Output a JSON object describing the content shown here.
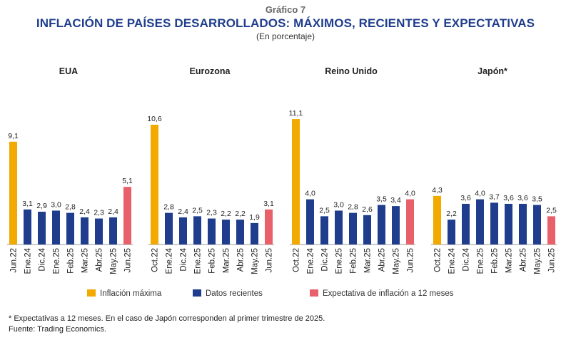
{
  "supertitle": "Gráfico 7",
  "title": "INFLACIÓN DE PAÍSES DESARROLLADOS: MÁXIMOS, RECIENTES Y EXPECTATIVAS",
  "subtitle": "(En porcentaje)",
  "colors": {
    "max": "#f2a900",
    "recent": "#1f3d8c",
    "expect": "#e8606a",
    "title": "#1f3d8c"
  },
  "legend": [
    {
      "key": "max",
      "label": "Inflación máxima"
    },
    {
      "key": "recent",
      "label": "Datos recientes"
    },
    {
      "key": "expect",
      "label": "Expectativa de inflación a 12 meses"
    }
  ],
  "footnote": "* Expectativas a 12 meses. En el caso de Japón corresponden al primer trimestre de 2025.",
  "source": "Fuente: Trading Economics.",
  "chart_data": {
    "type": "bar",
    "ylim": [
      0,
      12
    ],
    "groups": [
      {
        "name": "EUA",
        "categories": [
          "Jun.22",
          "Ene.24",
          "Dic.24",
          "Ene.25",
          "Feb.25",
          "Mar.25",
          "Abr.25",
          "May.25",
          "Jun.25"
        ],
        "values": [
          9.1,
          3.1,
          2.9,
          3.0,
          2.8,
          2.4,
          2.3,
          2.4,
          5.1
        ],
        "labels": [
          "9,1",
          "3,1",
          "2,9",
          "3,0",
          "2,8",
          "2,4",
          "2,3",
          "2,4",
          "5,1"
        ],
        "kinds": [
          "max",
          "recent",
          "recent",
          "recent",
          "recent",
          "recent",
          "recent",
          "recent",
          "expect"
        ]
      },
      {
        "name": "Eurozona",
        "categories": [
          "Oct.22",
          "Ene.24",
          "Dic.24",
          "Ene.25",
          "Feb.25",
          "Mar.25",
          "Abr.25",
          "May.25",
          "Jun.25"
        ],
        "values": [
          10.6,
          2.8,
          2.4,
          2.5,
          2.3,
          2.2,
          2.2,
          1.9,
          3.1
        ],
        "labels": [
          "10,6",
          "2,8",
          "2,4",
          "2,5",
          "2,3",
          "2,2",
          "2,2",
          "1,9",
          "3,1"
        ],
        "kinds": [
          "max",
          "recent",
          "recent",
          "recent",
          "recent",
          "recent",
          "recent",
          "recent",
          "expect"
        ]
      },
      {
        "name": "Reino Unido",
        "categories": [
          "Oct.22",
          "Ene.24",
          "Dic.24",
          "Ene.25",
          "Feb.25",
          "Mar.25",
          "Abr.25",
          "May.25",
          "Jun.25"
        ],
        "values": [
          11.1,
          4.0,
          2.5,
          3.0,
          2.8,
          2.6,
          3.5,
          3.4,
          4.0
        ],
        "labels": [
          "11,1",
          "4,0",
          "2,5",
          "3,0",
          "2,8",
          "2,6",
          "3,5",
          "3,4",
          "4,0"
        ],
        "kinds": [
          "max",
          "recent",
          "recent",
          "recent",
          "recent",
          "recent",
          "recent",
          "recent",
          "expect"
        ]
      },
      {
        "name": "Japón*",
        "categories": [
          "Oct.22",
          "Ene.24",
          "Dic.24",
          "Ene.25",
          "Feb.25",
          "Mar.25",
          "Abr.25",
          "May.25",
          "Jun.25"
        ],
        "values": [
          4.3,
          2.2,
          3.6,
          4.0,
          3.7,
          3.6,
          3.6,
          3.5,
          2.5
        ],
        "labels": [
          "4,3",
          "2,2",
          "3,6",
          "4,0",
          "3,7",
          "3,6",
          "3,6",
          "3,5",
          "2,5"
        ],
        "kinds": [
          "max",
          "recent",
          "recent",
          "recent",
          "recent",
          "recent",
          "recent",
          "recent",
          "expect"
        ]
      }
    ]
  }
}
